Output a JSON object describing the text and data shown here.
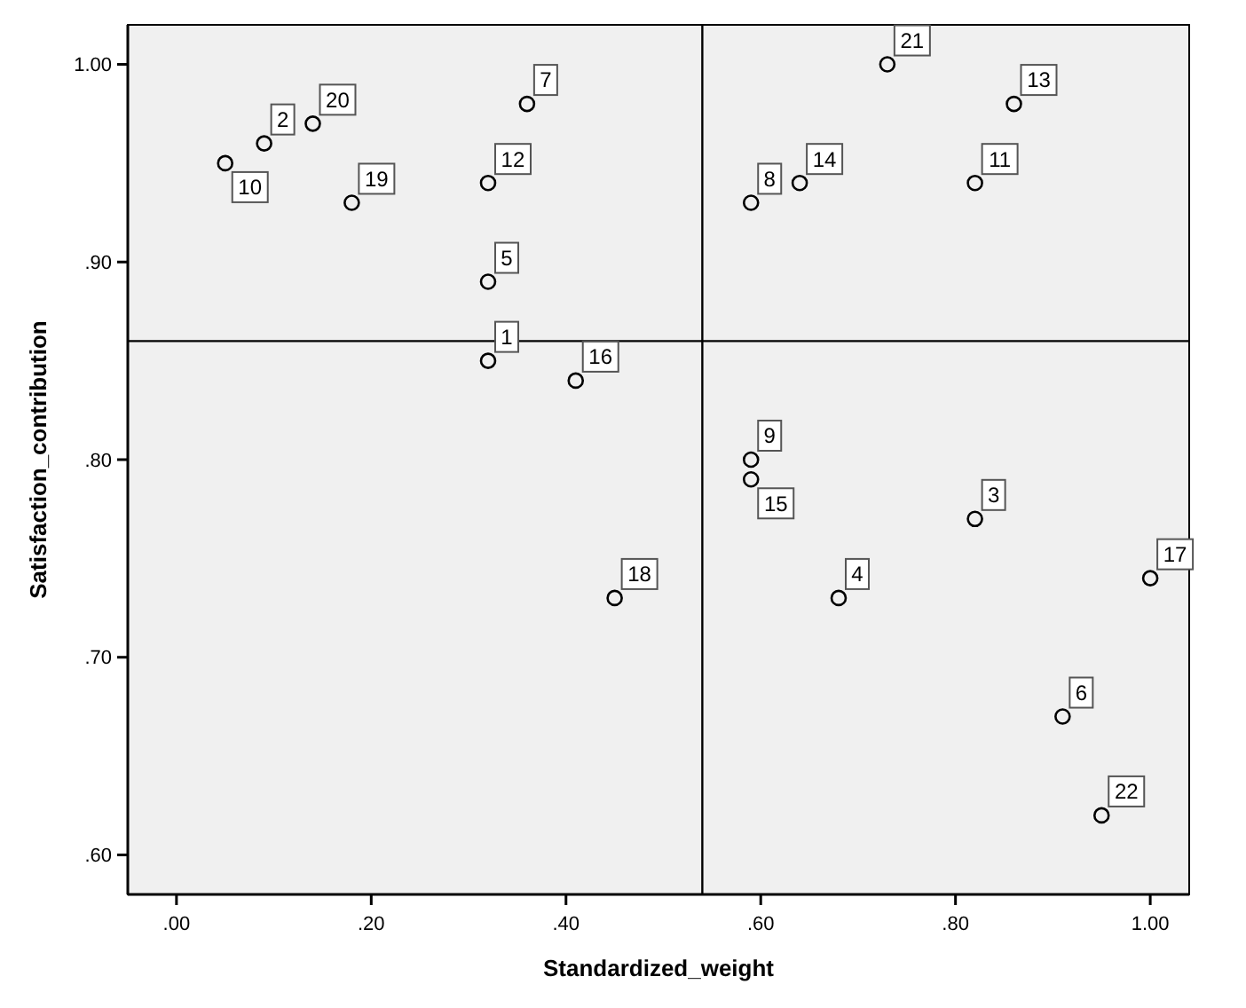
{
  "chart_data": {
    "type": "scatter",
    "xlabel": "Standardized_weight",
    "ylabel": "Satisfaction_contribution",
    "x": [
      0.05,
      0.09,
      0.14,
      0.18,
      0.32,
      0.36,
      0.32,
      0.32,
      0.41,
      0.45,
      0.73,
      0.86,
      0.64,
      0.59,
      0.82,
      0.59,
      0.59,
      0.82,
      0.68,
      1.0,
      0.91,
      0.95
    ],
    "values": [
      0.95,
      0.96,
      0.97,
      0.93,
      0.94,
      0.98,
      0.89,
      0.85,
      0.84,
      0.73,
      1.0,
      0.98,
      0.94,
      0.93,
      0.94,
      0.8,
      0.79,
      0.77,
      0.73,
      0.74,
      0.67,
      0.62
    ],
    "color": "#000000",
    "marker": "circle",
    "grid": false,
    "xlim": [
      -0.05,
      1.04
    ],
    "ylim": [
      0.58,
      1.02
    ],
    "xticks": [
      {
        "value": 0,
        "label": ".00"
      },
      {
        "value": 0.2,
        "label": ".20"
      },
      {
        "value": 0.4,
        "label": ".40"
      },
      {
        "value": 0.6,
        "label": ".60"
      },
      {
        "value": 0.8,
        "label": ".80"
      },
      {
        "value": 1,
        "label": "1.00"
      }
    ],
    "yticks": [
      {
        "value": 0.6,
        "label": ".60"
      },
      {
        "value": 0.7,
        "label": ".70"
      },
      {
        "value": 0.8,
        "label": ".80"
      },
      {
        "value": 0.9,
        "label": ".90"
      },
      {
        "value": 1,
        "label": "1.00"
      }
    ],
    "ref_lines": [
      {
        "axis": "x",
        "value": 0.54,
        "color": "#000000"
      },
      {
        "axis": "y",
        "value": 0.86,
        "color": "#000000"
      }
    ],
    "annotations": [
      {
        "text": "10",
        "x": 0.05,
        "y": 0.95
      },
      {
        "text": "2",
        "x": 0.09,
        "y": 0.96
      },
      {
        "text": "20",
        "x": 0.14,
        "y": 0.97
      },
      {
        "text": "19",
        "x": 0.18,
        "y": 0.93
      },
      {
        "text": "12",
        "x": 0.32,
        "y": 0.94
      },
      {
        "text": "7",
        "x": 0.36,
        "y": 0.98
      },
      {
        "text": "5",
        "x": 0.32,
        "y": 0.89
      },
      {
        "text": "1",
        "x": 0.32,
        "y": 0.85
      },
      {
        "text": "16",
        "x": 0.41,
        "y": 0.84
      },
      {
        "text": "18",
        "x": 0.45,
        "y": 0.73
      },
      {
        "text": "21",
        "x": 0.73,
        "y": 1.0
      },
      {
        "text": "13",
        "x": 0.86,
        "y": 0.98
      },
      {
        "text": "14",
        "x": 0.64,
        "y": 0.94
      },
      {
        "text": "8",
        "x": 0.59,
        "y": 0.93
      },
      {
        "text": "11",
        "x": 0.82,
        "y": 0.94
      },
      {
        "text": "9",
        "x": 0.59,
        "y": 0.8
      },
      {
        "text": "15",
        "x": 0.59,
        "y": 0.79
      },
      {
        "text": "3",
        "x": 0.82,
        "y": 0.77
      },
      {
        "text": "4",
        "x": 0.68,
        "y": 0.73
      },
      {
        "text": "17",
        "x": 1.0,
        "y": 0.74
      },
      {
        "text": "6",
        "x": 0.91,
        "y": 0.67
      },
      {
        "text": "22",
        "x": 0.95,
        "y": 0.62
      }
    ]
  }
}
